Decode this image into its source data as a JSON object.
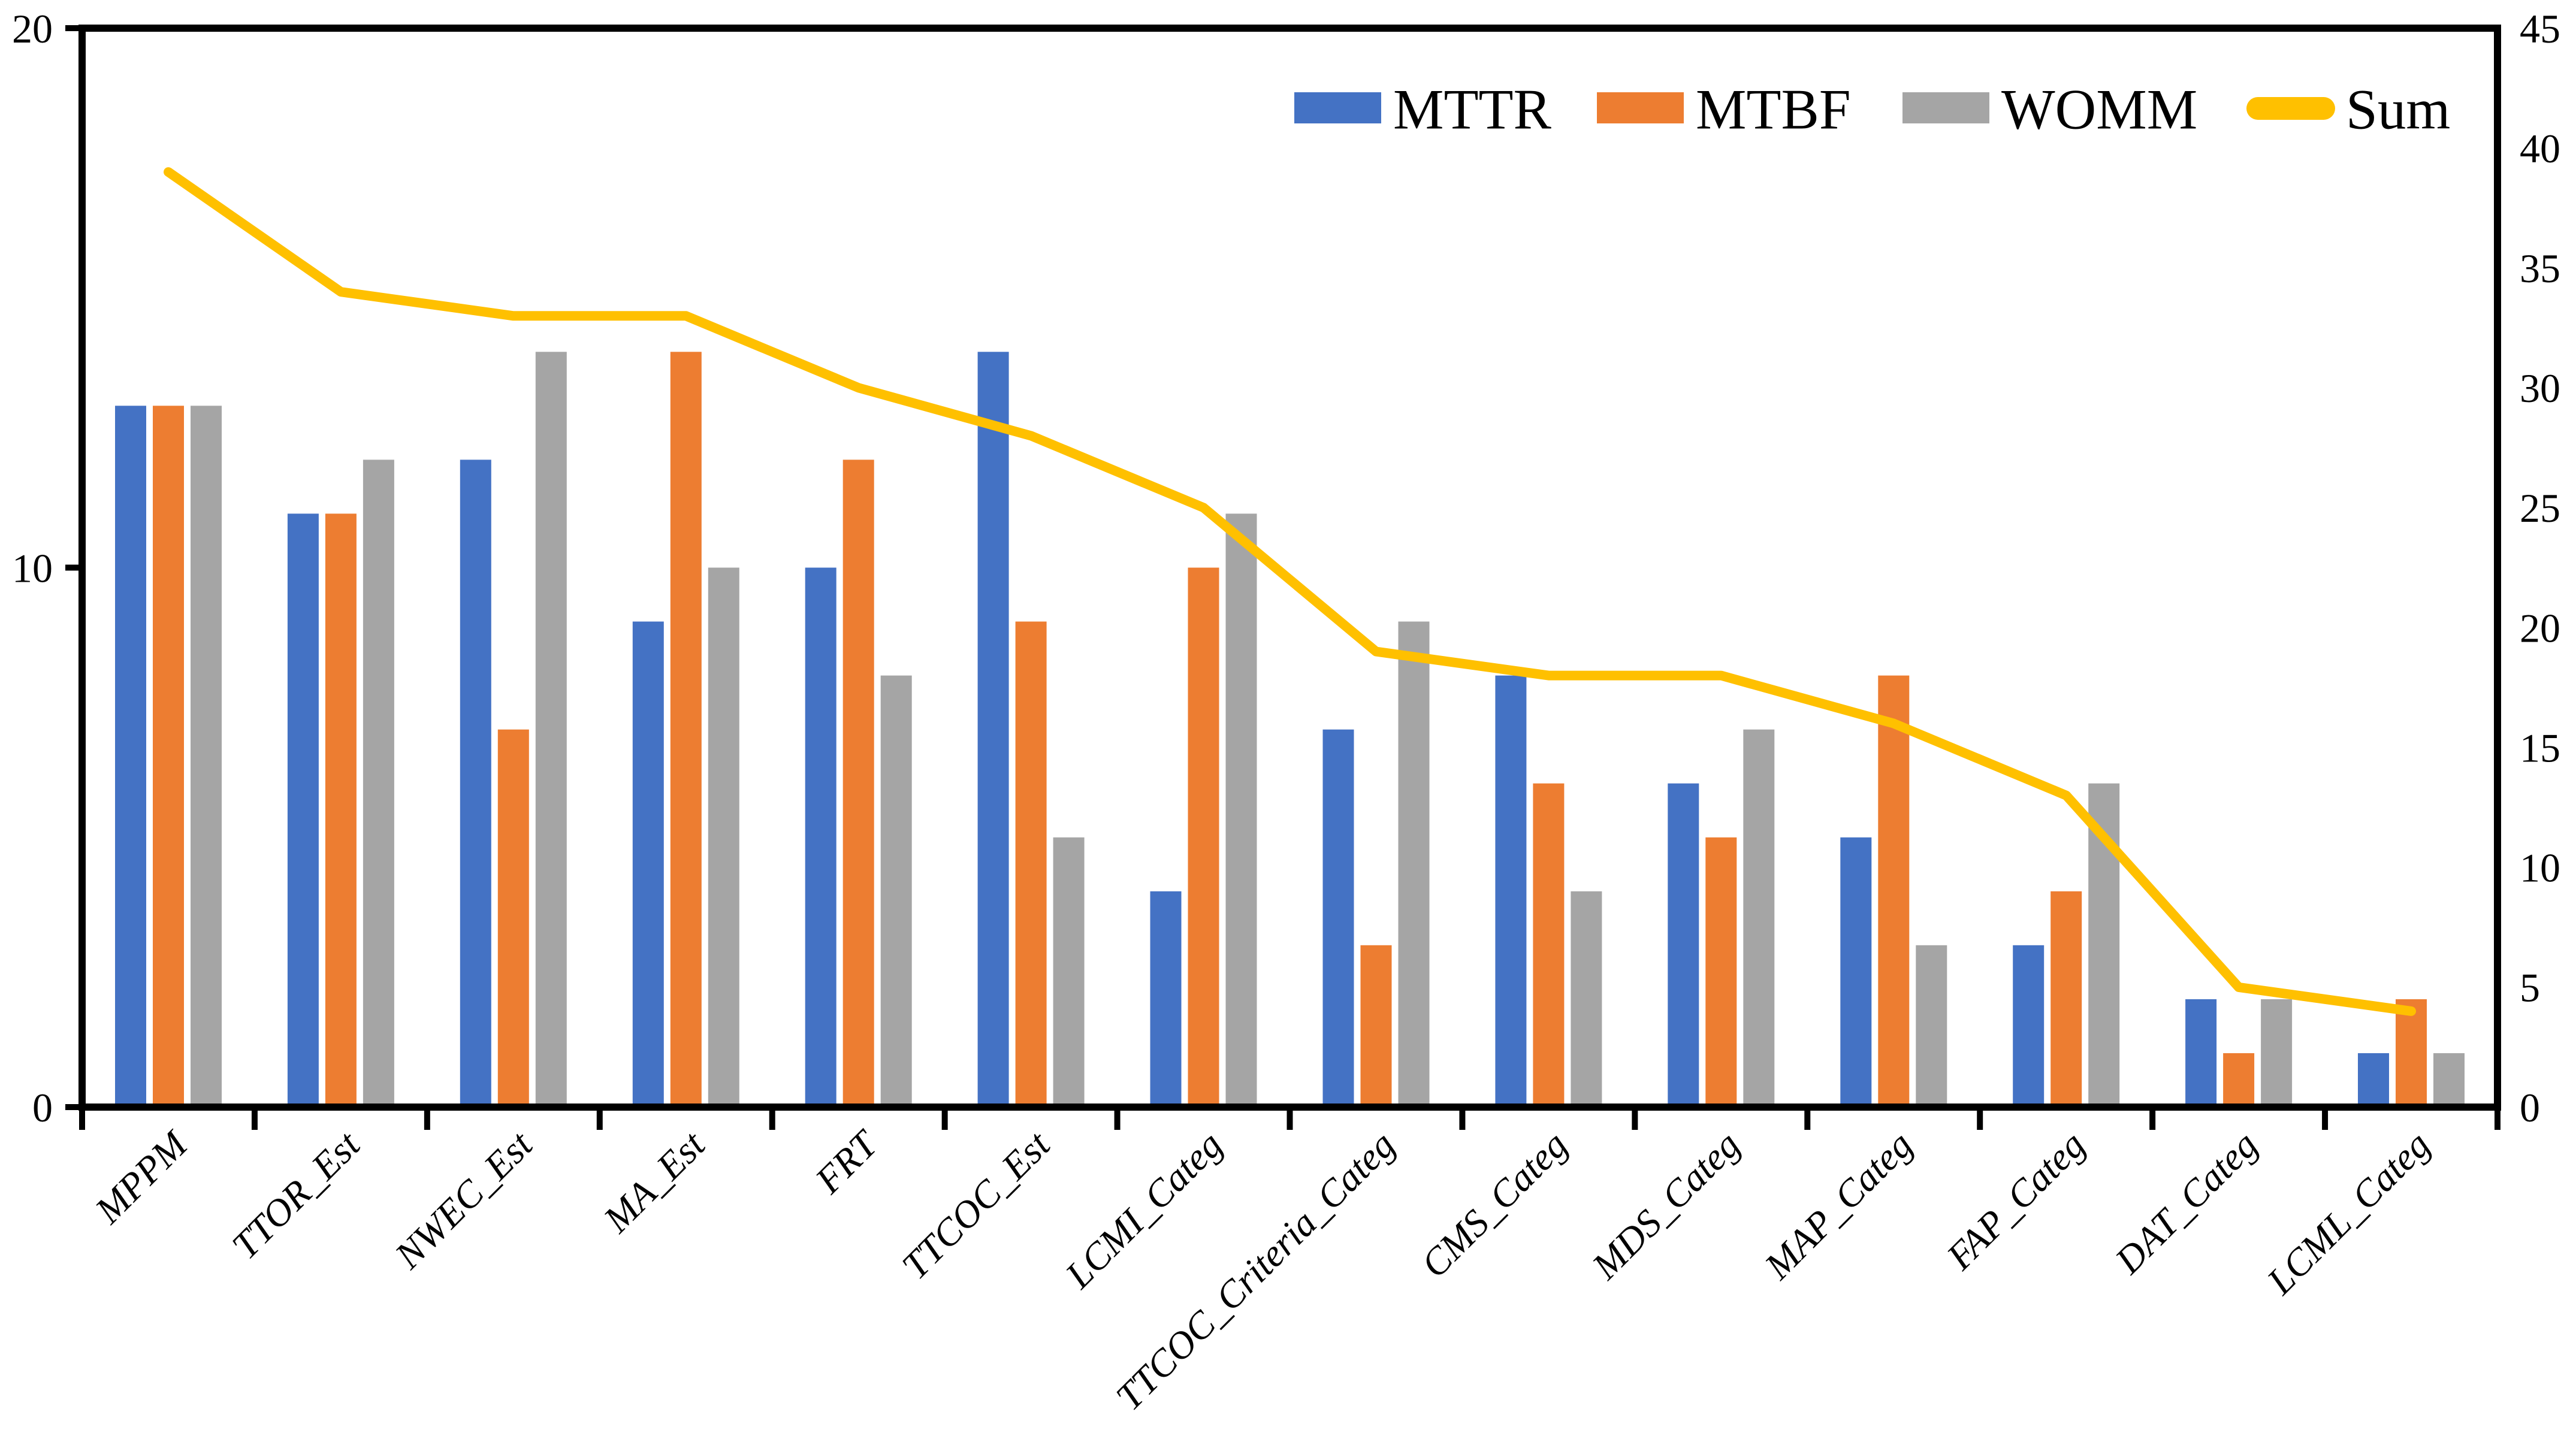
{
  "chart_data": {
    "type": "bar+line",
    "title": "",
    "categories": [
      "MPPM",
      "TTOR_Est",
      "NWEC_Est",
      "MA_Est",
      "FRT",
      "TTCOC_Est",
      "LCMI_Categ",
      "TTCOC_Criteria_Categ",
      "CMS_Categ",
      "MDS_Categ",
      "MAP_Categ",
      "FAP_Categ",
      "DAT_Categ",
      "LCML_Categ"
    ],
    "series": [
      {
        "name": "MTTR",
        "type": "bar",
        "axis": "left",
        "color": "#4472C4",
        "values": [
          13,
          11,
          12,
          9,
          10,
          14,
          4,
          7,
          8,
          6,
          5,
          3,
          2,
          1
        ]
      },
      {
        "name": "MTBF",
        "type": "bar",
        "axis": "left",
        "color": "#ED7D31",
        "values": [
          13,
          11,
          7,
          14,
          12,
          9,
          10,
          3,
          6,
          5,
          8,
          4,
          1,
          2
        ]
      },
      {
        "name": "WOMM",
        "type": "bar",
        "axis": "left",
        "color": "#A5A5A5",
        "values": [
          13,
          12,
          14,
          10,
          8,
          5,
          11,
          9,
          4,
          7,
          3,
          6,
          2,
          1
        ]
      },
      {
        "name": "Sum",
        "type": "line",
        "axis": "right",
        "color": "#FFC000",
        "values": [
          39,
          34,
          33,
          33,
          30,
          28,
          25,
          19,
          18,
          18,
          16,
          13,
          5,
          4
        ]
      }
    ],
    "left_axis": {
      "min": 0,
      "max": 20,
      "tick_values": [
        0,
        10,
        20
      ],
      "tick_labels": [
        "0",
        "10",
        "20"
      ]
    },
    "right_axis": {
      "min": 0,
      "max": 45,
      "tick_values": [
        0,
        5,
        10,
        15,
        20,
        25,
        30,
        35,
        40,
        45
      ],
      "tick_labels": [
        "0",
        "5",
        "10",
        "15",
        "20",
        "25",
        "30",
        "35",
        "40",
        "45"
      ]
    },
    "legend": {
      "position": "top",
      "entries": [
        "MTTR",
        "MTBF",
        "WOMM",
        "Sum"
      ]
    },
    "grid": false,
    "background_color": "#FFFFFF",
    "axis_color": "#000000"
  }
}
